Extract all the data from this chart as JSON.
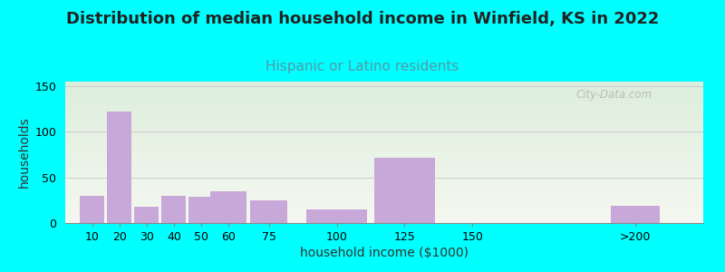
{
  "title": "Distribution of median household income in Winfield, KS in 2022",
  "subtitle": "Hispanic or Latino residents",
  "xlabel": "household income ($1000)",
  "ylabel": "households",
  "background_color": "#00FFFF",
  "bar_color": "#C8A8D8",
  "categories": [
    "10",
    "20",
    "30",
    "40",
    "50",
    "60",
    "75",
    "100",
    "125",
    "150",
    ">200"
  ],
  "values": [
    30,
    122,
    18,
    30,
    29,
    35,
    25,
    15,
    72,
    0,
    19
  ],
  "bar_positions": [
    10,
    20,
    30,
    40,
    50,
    60,
    75,
    100,
    125,
    150,
    210
  ],
  "bar_widths": [
    10,
    10,
    10,
    10,
    10,
    15,
    15,
    25,
    25,
    25,
    20
  ],
  "ylim": [
    0,
    155
  ],
  "yticks": [
    0,
    50,
    100,
    150
  ],
  "title_fontsize": 13,
  "subtitle_fontsize": 11,
  "axis_label_fontsize": 10,
  "tick_label_fontsize": 9,
  "watermark_text": "City-Data.com",
  "subtitle_color": "#5599AA",
  "title_color": "#222222",
  "grad_top": "#ddeedd",
  "grad_bottom": "#f5f8f0",
  "xlim": [
    0,
    235
  ]
}
